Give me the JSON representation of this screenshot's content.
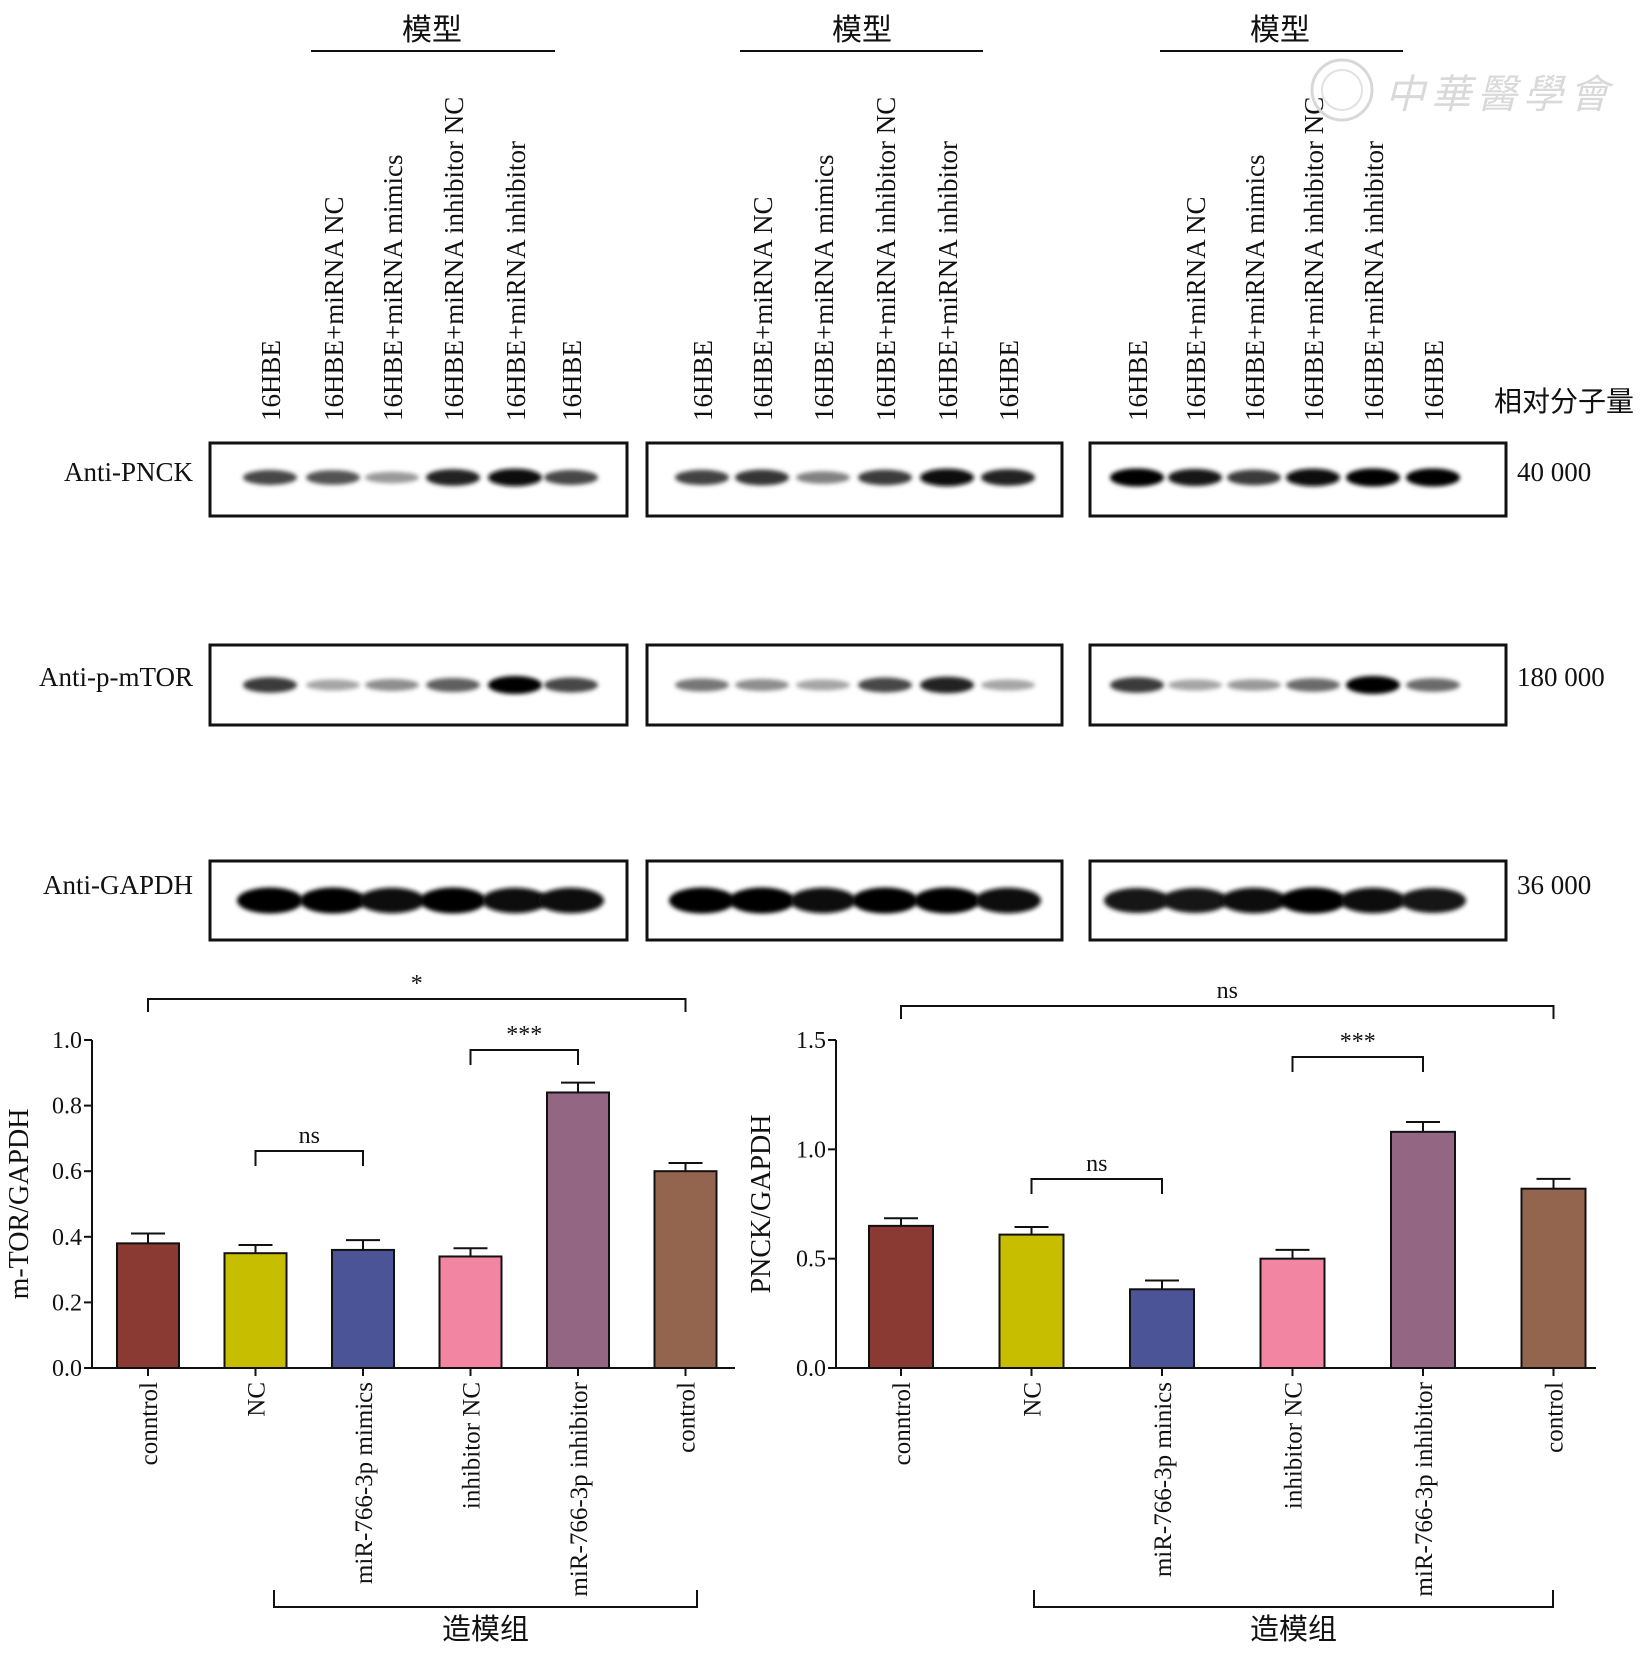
{
  "blot": {
    "group_header": "模型",
    "lanes": [
      "16HBE",
      "16HBE+miRNA NC",
      "16HBE+miRNA mimics",
      "16HBE+miRNA inhibitor NC",
      "16HBE+miRNA inhibitor",
      "16HBE"
    ],
    "mw_header": "相对分子量",
    "rows": [
      {
        "label": "Anti-PNCK",
        "mw": "40 000"
      },
      {
        "label": "Anti-p-mTOR",
        "mw": "180 000"
      },
      {
        "label": "Anti-GAPDH",
        "mw": "36 000"
      }
    ],
    "band_intensity": [
      [
        [
          0.7,
          0.65,
          0.35,
          0.85,
          0.95,
          0.7
        ],
        [
          0.72,
          0.78,
          0.45,
          0.75,
          0.95,
          0.85
        ],
        [
          1,
          0.9,
          0.75,
          0.95,
          1,
          1
        ]
      ],
      [
        [
          0.75,
          0.3,
          0.4,
          0.6,
          1,
          0.7
        ],
        [
          0.5,
          0.4,
          0.3,
          0.7,
          0.85,
          0.3
        ],
        [
          0.75,
          0.3,
          0.35,
          0.55,
          1,
          0.55
        ]
      ],
      [
        [
          1,
          1,
          0.95,
          1,
          0.95,
          0.95
        ],
        [
          1,
          1,
          0.95,
          1,
          1,
          0.95
        ],
        [
          0.9,
          0.9,
          0.95,
          1,
          0.95,
          0.9
        ]
      ]
    ]
  },
  "watermark": "中華醫學會",
  "chart_data": [
    {
      "type": "bar",
      "ylabel": "m-TOR/GAPDH",
      "ylim": [
        0,
        1.0
      ],
      "yticks": [
        "0.0",
        "0.2",
        "0.4",
        "0.6",
        "0.8",
        "1.0"
      ],
      "categories": [
        "conntrol",
        "NC",
        "miR-766-3p mimics",
        "inhibitor NC",
        "miR-766-3p inhibitor",
        "control"
      ],
      "values": [
        0.38,
        0.35,
        0.36,
        0.34,
        0.84,
        0.6
      ],
      "errors": [
        0.03,
        0.025,
        0.03,
        0.025,
        0.03,
        0.025
      ],
      "colors": [
        "#8B3A33",
        "#C8BE00",
        "#4A5496",
        "#F285A2",
        "#936683",
        "#94654E"
      ],
      "significance": [
        {
          "from": 0,
          "to": 5,
          "label": "*"
        },
        {
          "from": 1,
          "to": 2,
          "label": "ns"
        },
        {
          "from": 3,
          "to": 4,
          "label": "***"
        }
      ],
      "group_label": "造模组",
      "group_range": [
        1,
        5
      ]
    },
    {
      "type": "bar",
      "ylabel": "PNCK/GAPDH",
      "ylim": [
        0,
        1.5
      ],
      "yticks": [
        "0.0",
        "0.5",
        "1.0",
        "1.5"
      ],
      "categories": [
        "conntrol",
        "NC",
        "miR-766-3p minics",
        "inhibitor NC",
        "miR-766-3p inhibitor",
        "control"
      ],
      "values": [
        0.65,
        0.61,
        0.36,
        0.5,
        1.08,
        0.82
      ],
      "errors": [
        0.035,
        0.035,
        0.04,
        0.04,
        0.045,
        0.045
      ],
      "colors": [
        "#8B3A33",
        "#C8BE00",
        "#4A5496",
        "#F285A2",
        "#936683",
        "#94654E"
      ],
      "significance": [
        {
          "from": 0,
          "to": 5,
          "label": "ns"
        },
        {
          "from": 1,
          "to": 2,
          "label": "ns"
        },
        {
          "from": 3,
          "to": 4,
          "label": "***"
        }
      ],
      "group_label": "造模组",
      "group_range": [
        1,
        5
      ]
    }
  ]
}
